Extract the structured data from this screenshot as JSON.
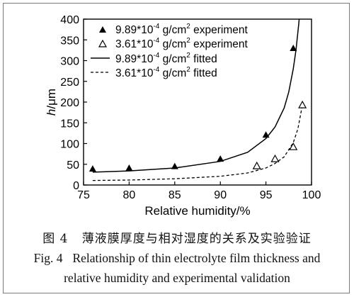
{
  "chart_data": {
    "type": "scatter",
    "x": [
      76,
      80,
      85,
      90,
      95,
      98,
      99
    ],
    "xlabel": "Relative humidity/%",
    "ylabel_prefix": "h",
    "ylabel_suffix": "/μm",
    "xlim": [
      75,
      100
    ],
    "ylim": [
      0,
      400
    ],
    "xticks": [
      75,
      80,
      85,
      90,
      95,
      100
    ],
    "yticks": [
      0,
      50,
      100,
      150,
      200,
      250,
      300,
      350,
      400
    ],
    "legend_position": "top-left",
    "grid": false,
    "series": [
      {
        "name": "9.89*10⁻⁴ g/cm² experiment",
        "kind": "points",
        "marker": "filled-triangle",
        "points": [
          [
            76,
            39
          ],
          [
            80,
            41
          ],
          [
            85,
            45
          ],
          [
            90,
            63
          ],
          [
            95,
            121
          ],
          [
            98,
            330
          ]
        ]
      },
      {
        "name": "3.61*10⁻⁴ g/cm² experiment",
        "kind": "points",
        "marker": "open-triangle",
        "points": [
          [
            94,
            46
          ],
          [
            96,
            63
          ],
          [
            98,
            92
          ],
          [
            99,
            193
          ]
        ]
      },
      {
        "name": "9.89*10⁻⁴ g/cm² fitted",
        "kind": "line",
        "style": "solid",
        "points": [
          [
            76,
            31
          ],
          [
            80,
            34
          ],
          [
            85,
            41
          ],
          [
            90,
            57
          ],
          [
            93,
            79
          ],
          [
            95,
            112
          ],
          [
            96,
            140
          ],
          [
            97,
            186
          ],
          [
            97.5,
            224
          ],
          [
            98,
            280
          ],
          [
            98.3,
            326
          ],
          [
            98.6,
            389
          ],
          [
            98.7,
            415
          ]
        ]
      },
      {
        "name": "3.61*10⁻⁴ g/cm² fitted",
        "kind": "line",
        "style": "dashed",
        "points": [
          [
            76,
            11
          ],
          [
            80,
            12
          ],
          [
            85,
            15
          ],
          [
            90,
            21
          ],
          [
            93,
            29
          ],
          [
            95,
            41
          ],
          [
            96,
            52
          ],
          [
            97,
            68
          ],
          [
            98,
            102
          ],
          [
            98.5,
            135
          ],
          [
            99,
            193
          ]
        ]
      }
    ]
  },
  "legend": [
    {
      "coef": "9.89*10",
      "exp": "-4",
      "unit": " g/cm",
      "unit_exp": "2",
      "label": " experiment"
    },
    {
      "coef": "3.61*10",
      "exp": "-4",
      "unit": " g/cm",
      "unit_exp": "2",
      "label": " experiment"
    },
    {
      "coef": "9.89*10",
      "exp": "-4",
      "unit": " g/cm",
      "unit_exp": "2",
      "label": " fitted"
    },
    {
      "coef": "3.61*10",
      "exp": "-4",
      "unit": " g/cm",
      "unit_exp": "2",
      "label": " fitted"
    }
  ],
  "caption": {
    "cn_fig": "图 4",
    "cn_text": "薄液膜厚度与相对湿度的关系及实验验证",
    "en_fig": "Fig. 4",
    "en_line1": "Relationship of thin electrolyte film thickness and",
    "en_line2": "relative humidity and experimental validation"
  },
  "colors": {
    "marker": "#000000",
    "line": "#000000",
    "axis": "#000000"
  }
}
